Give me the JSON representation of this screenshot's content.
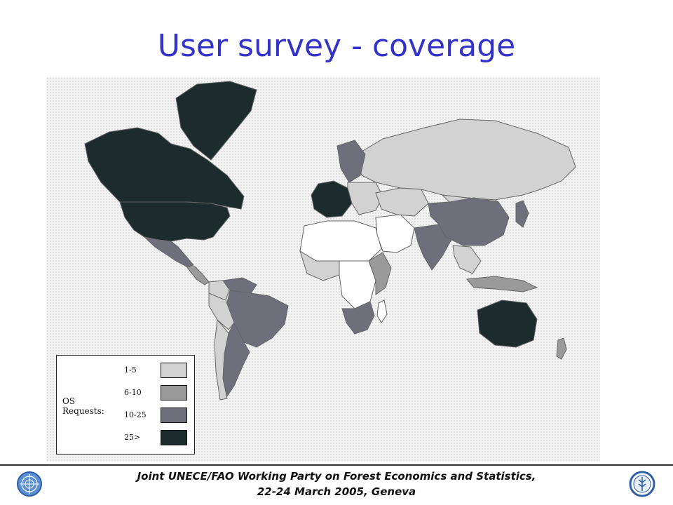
{
  "title": "User survey - coverage",
  "legend": {
    "title": "OS Requests:",
    "items": [
      {
        "label": "1-5",
        "color": "#d2d2d2"
      },
      {
        "label": "6-10",
        "color": "#9a9a9a"
      },
      {
        "label": "10-25",
        "color": "#6f6f7c"
      },
      {
        "label": "25>",
        "color": "#1c2b2b"
      }
    ]
  },
  "map": {
    "colors": {
      "none": "#ffffff",
      "low": "#d2d2d2",
      "medium": "#9a9a9a",
      "high": "#6f6f7c",
      "very_high": "#1c2b2b",
      "outline": "#666666",
      "background": "#f3f3f3"
    },
    "regions": [
      {
        "name": "Greenland",
        "category": "very_high"
      },
      {
        "name": "Canada",
        "category": "very_high"
      },
      {
        "name": "United States",
        "category": "very_high"
      },
      {
        "name": "Mexico",
        "category": "high"
      },
      {
        "name": "Central America",
        "category": "medium"
      },
      {
        "name": "Colombia",
        "category": "low"
      },
      {
        "name": "Venezuela",
        "category": "high"
      },
      {
        "name": "Brazil",
        "category": "high"
      },
      {
        "name": "Peru",
        "category": "low"
      },
      {
        "name": "Argentina",
        "category": "high"
      },
      {
        "name": "Chile",
        "category": "low"
      },
      {
        "name": "Russia",
        "category": "low"
      },
      {
        "name": "Scandinavia",
        "category": "high"
      },
      {
        "name": "Western Europe",
        "category": "very_high"
      },
      {
        "name": "Eastern Europe",
        "category": "low"
      },
      {
        "name": "North Africa",
        "category": "none"
      },
      {
        "name": "West Africa",
        "category": "low"
      },
      {
        "name": "Central Africa",
        "category": "none"
      },
      {
        "name": "East Africa",
        "category": "medium"
      },
      {
        "name": "Southern Africa",
        "category": "high"
      },
      {
        "name": "Madagascar",
        "category": "none"
      },
      {
        "name": "Middle East",
        "category": "none"
      },
      {
        "name": "Central Asia",
        "category": "low"
      },
      {
        "name": "India",
        "category": "high"
      },
      {
        "name": "China",
        "category": "high"
      },
      {
        "name": "Mongolia",
        "category": "low"
      },
      {
        "name": "Japan",
        "category": "high"
      },
      {
        "name": "Southeast Asia",
        "category": "low"
      },
      {
        "name": "Indonesia",
        "category": "medium"
      },
      {
        "name": "Australia",
        "category": "very_high"
      },
      {
        "name": "New Zealand",
        "category": "medium"
      }
    ]
  },
  "footer": {
    "line1": "Joint UNECE/FAO Working Party on Forest Economics and Statistics,",
    "line2": "22-24 March 2005, Geneva"
  },
  "logos": {
    "left": "un-emblem-icon",
    "right": "fao-emblem-icon"
  }
}
